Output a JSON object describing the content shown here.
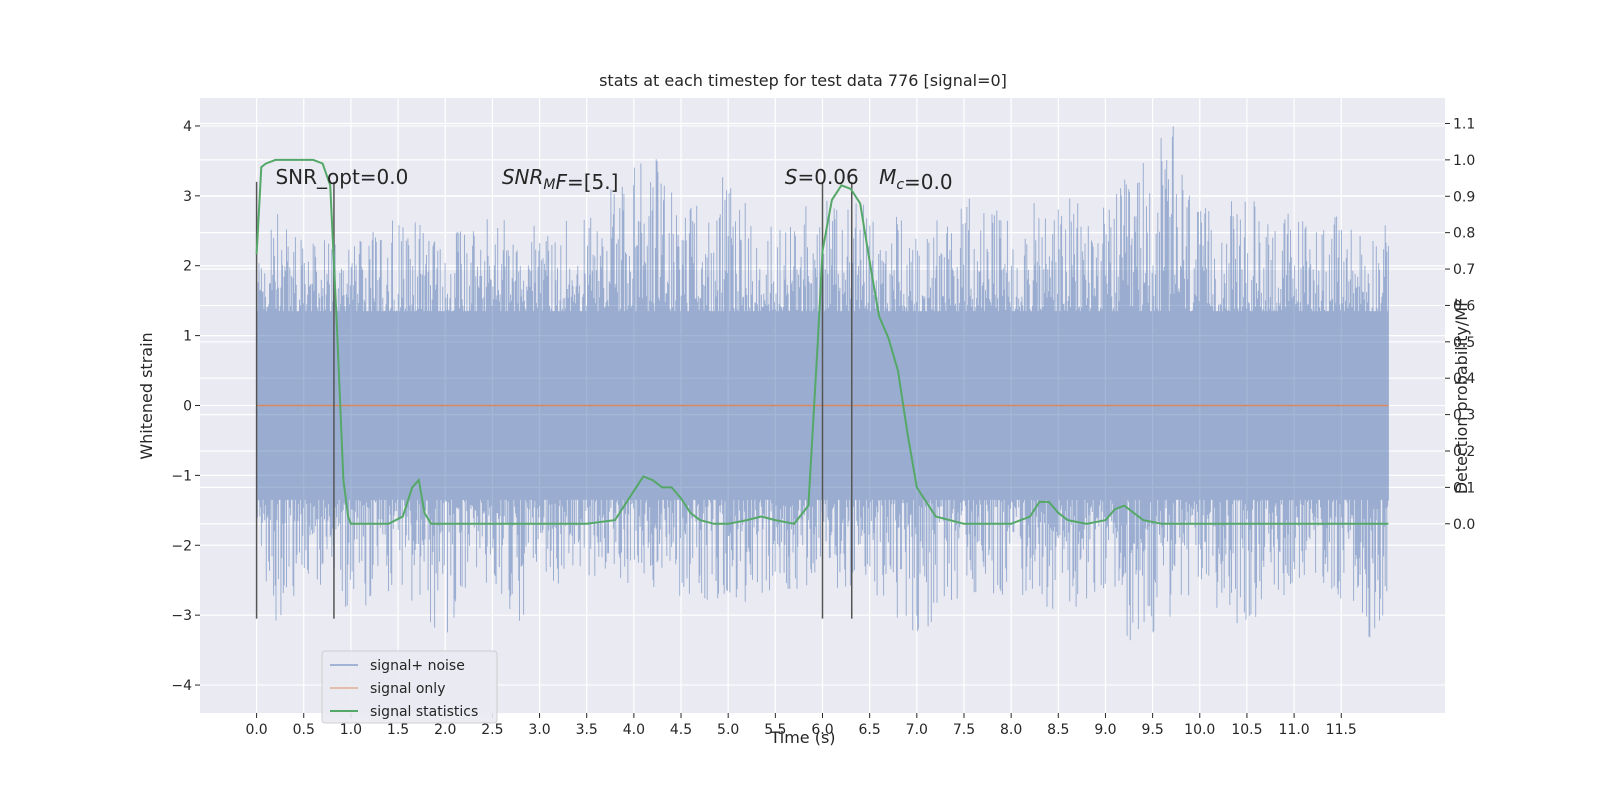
{
  "chart_data": {
    "type": "line",
    "title": "stats at each timestep for test data 776 [signal=0]",
    "xlabel": "Time (s)",
    "ylabel_left": "Whitened strain",
    "ylabel_right": "Detection probability/MF",
    "xlim": [
      -0.6,
      12.6
    ],
    "ylim_left": [
      -4.4,
      4.4
    ],
    "ylim_right": [
      -0.52,
      1.17
    ],
    "x_ticks": [
      0.0,
      0.5,
      1.0,
      1.5,
      2.0,
      2.5,
      3.0,
      3.5,
      4.0,
      4.5,
      5.0,
      5.5,
      6.0,
      6.5,
      7.0,
      7.5,
      8.0,
      8.5,
      9.0,
      9.5,
      10.0,
      10.5,
      11.0,
      11.5
    ],
    "x_tick_labels": [
      "0.0",
      "0.5",
      "1.0",
      "1.5",
      "2.0",
      "2.5",
      "3.0",
      "3.5",
      "4.0",
      "4.5",
      "5.0",
      "5.5",
      "6.0",
      "6.5",
      "7.0",
      "7.5",
      "8.0",
      "8.5",
      "9.0",
      "9.5",
      "10.0",
      "10.5",
      "11.0",
      "11.5"
    ],
    "y_left_ticks": [
      -4,
      -3,
      -2,
      -1,
      0,
      1,
      2,
      3,
      4
    ],
    "y_left_tick_labels": [
      "−4",
      "−3",
      "−2",
      "−1",
      "0",
      "1",
      "2",
      "3",
      "4"
    ],
    "y_right_ticks": [
      0.0,
      0.1,
      0.2,
      0.3,
      0.4,
      0.5,
      0.6,
      0.7,
      0.8,
      0.9,
      1.0,
      1.1
    ],
    "y_right_tick_labels": [
      "0.0",
      "0.1",
      "0.2",
      "0.3",
      "0.4",
      "0.5",
      "0.6",
      "0.7",
      "0.8",
      "0.9",
      "1.0",
      "1.1"
    ],
    "grid": true,
    "legend_position": "lower-left",
    "series": [
      {
        "name": "signal+ noise",
        "axis": "left",
        "color": "#4c72b0",
        "x_range": [
          0.0,
          12.0
        ],
        "envelope_upper": [
          [
            0.0,
            2.0
          ],
          [
            0.25,
            2.9
          ],
          [
            0.5,
            2.3
          ],
          [
            0.75,
            2.4
          ],
          [
            1.0,
            2.3
          ],
          [
            1.5,
            2.7
          ],
          [
            2.0,
            2.5
          ],
          [
            2.5,
            2.7
          ],
          [
            3.0,
            2.6
          ],
          [
            3.5,
            2.7
          ],
          [
            4.2,
            3.8
          ],
          [
            4.5,
            2.8
          ],
          [
            5.0,
            3.4
          ],
          [
            5.5,
            2.5
          ],
          [
            6.0,
            3.1
          ],
          [
            6.5,
            2.9
          ],
          [
            7.0,
            2.6
          ],
          [
            7.5,
            3.0
          ],
          [
            8.0,
            2.8
          ],
          [
            8.5,
            3.0
          ],
          [
            9.0,
            2.9
          ],
          [
            9.7,
            4.1
          ],
          [
            10.0,
            2.8
          ],
          [
            10.5,
            3.0
          ],
          [
            11.0,
            2.8
          ],
          [
            11.5,
            2.7
          ],
          [
            12.0,
            2.6
          ]
        ],
        "envelope_lower": [
          [
            0.0,
            -2.0
          ],
          [
            0.25,
            -3.4
          ],
          [
            0.5,
            -2.5
          ],
          [
            0.75,
            -2.6
          ],
          [
            1.0,
            -3.0
          ],
          [
            1.5,
            -2.6
          ],
          [
            1.97,
            -3.35
          ],
          [
            2.5,
            -2.5
          ],
          [
            2.75,
            -3.2
          ],
          [
            3.0,
            -2.6
          ],
          [
            3.5,
            -2.5
          ],
          [
            4.0,
            -2.6
          ],
          [
            4.5,
            -2.8
          ],
          [
            5.0,
            -3.0
          ],
          [
            5.5,
            -2.6
          ],
          [
            6.0,
            -2.7
          ],
          [
            6.5,
            -2.6
          ],
          [
            7.0,
            -3.4
          ],
          [
            7.5,
            -2.8
          ],
          [
            8.0,
            -2.7
          ],
          [
            8.5,
            -3.2
          ],
          [
            9.0,
            -2.7
          ],
          [
            9.3,
            -3.5
          ],
          [
            10.0,
            -2.8
          ],
          [
            10.5,
            -3.2
          ],
          [
            11.0,
            -2.6
          ],
          [
            11.5,
            -2.8
          ],
          [
            11.9,
            -3.5
          ],
          [
            12.0,
            -2.6
          ]
        ]
      },
      {
        "name": "signal only",
        "axis": "left",
        "color": "#dd8452",
        "x": [
          0.0,
          12.0
        ],
        "y": [
          0.0,
          0.0
        ]
      },
      {
        "name": "signal statistics",
        "axis": "right",
        "color": "#55a868",
        "x": [
          0.0,
          0.05,
          0.1,
          0.2,
          0.3,
          0.5,
          0.6,
          0.7,
          0.78,
          0.85,
          0.92,
          0.97,
          1.0,
          1.1,
          1.4,
          1.55,
          1.65,
          1.72,
          1.78,
          1.85,
          1.95,
          2.2,
          2.5,
          3.0,
          3.5,
          3.8,
          3.95,
          4.1,
          4.2,
          4.3,
          4.4,
          4.5,
          4.6,
          4.7,
          4.85,
          5.0,
          5.2,
          5.35,
          5.5,
          5.7,
          5.85,
          5.95,
          6.0,
          6.1,
          6.2,
          6.3,
          6.4,
          6.5,
          6.6,
          6.7,
          6.8,
          6.9,
          7.0,
          7.2,
          7.5,
          8.0,
          8.2,
          8.3,
          8.4,
          8.5,
          8.6,
          8.8,
          9.0,
          9.1,
          9.2,
          9.3,
          9.4,
          9.6,
          9.8,
          10.0,
          11.0,
          12.0
        ],
        "y": [
          0.74,
          0.98,
          0.99,
          1.0,
          1.0,
          1.0,
          1.0,
          0.99,
          0.93,
          0.55,
          0.12,
          0.02,
          0.0,
          0.0,
          0.0,
          0.02,
          0.1,
          0.12,
          0.03,
          0.0,
          0.0,
          0.0,
          0.0,
          0.0,
          0.0,
          0.01,
          0.07,
          0.13,
          0.12,
          0.1,
          0.1,
          0.07,
          0.03,
          0.01,
          0.0,
          0.0,
          0.01,
          0.02,
          0.01,
          0.0,
          0.05,
          0.5,
          0.75,
          0.89,
          0.93,
          0.92,
          0.88,
          0.72,
          0.57,
          0.51,
          0.42,
          0.25,
          0.1,
          0.02,
          0.0,
          0.0,
          0.02,
          0.06,
          0.06,
          0.03,
          0.01,
          0.0,
          0.01,
          0.04,
          0.05,
          0.03,
          0.01,
          0.0,
          0.0,
          0.0,
          0.0,
          0.0
        ]
      }
    ],
    "vlines": [
      {
        "x": 0.0,
        "ymin": -3.05,
        "ymax": 3.2
      },
      {
        "x": 0.82,
        "ymin": -3.05,
        "ymax": 3.2
      },
      {
        "x": 6.0,
        "ymin": -3.05,
        "ymax": 3.2
      },
      {
        "x": 6.31,
        "ymin": -3.05,
        "ymax": 3.2
      }
    ],
    "annotations": [
      {
        "text": "SNR_opt=0.0",
        "x": 0.2,
        "y": 3.2
      },
      {
        "parts": [
          {
            "t": "SNR",
            "i": true
          },
          {
            "t": "M",
            "i": true,
            "sub": true
          },
          {
            "t": "F",
            "i": true
          },
          {
            "t": "=[5.]",
            "i": false
          }
        ],
        "x": 2.6,
        "y": 3.2
      },
      {
        "parts": [
          {
            "t": "S",
            "i": true
          },
          {
            "t": "=0.06",
            "i": false
          }
        ],
        "x": 5.6,
        "y": 3.2
      },
      {
        "parts": [
          {
            "t": "M",
            "i": true
          },
          {
            "t": "c",
            "i": true,
            "sub": true
          },
          {
            "t": "=0.0",
            "i": false
          }
        ],
        "x": 6.6,
        "y": 3.2
      }
    ]
  }
}
